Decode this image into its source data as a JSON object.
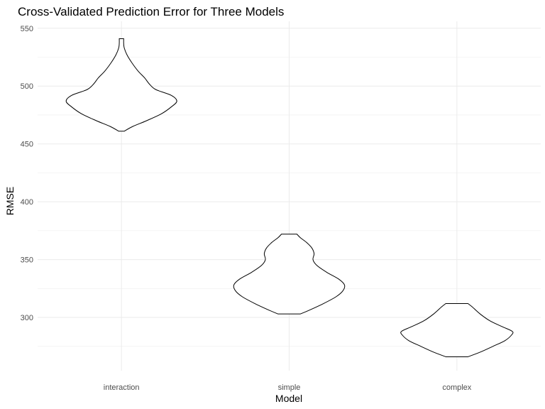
{
  "chart_data": {
    "type": "violin",
    "title": "Cross-Validated Prediction Error for Three Models",
    "xlabel": "Model",
    "ylabel": "RMSE",
    "categories": [
      "interaction",
      "simple",
      "complex"
    ],
    "ylim": [
      254,
      556
    ],
    "yticks": [
      300,
      350,
      400,
      450,
      500,
      550
    ],
    "grid": true,
    "legend": "none",
    "violins": [
      {
        "category": "interaction",
        "profile": [
          [
            461,
            0.05
          ],
          [
            465,
            0.2
          ],
          [
            470,
            0.45
          ],
          [
            476,
            0.72
          ],
          [
            482,
            0.9
          ],
          [
            487,
            1.0
          ],
          [
            492,
            0.9
          ],
          [
            497,
            0.62
          ],
          [
            502,
            0.5
          ],
          [
            507,
            0.42
          ],
          [
            513,
            0.3
          ],
          [
            520,
            0.19
          ],
          [
            527,
            0.1
          ],
          [
            533,
            0.05
          ],
          [
            537,
            0.04
          ],
          [
            541,
            0.04
          ]
        ]
      },
      {
        "category": "simple",
        "profile": [
          [
            303,
            0.2
          ],
          [
            306,
            0.35
          ],
          [
            312,
            0.62
          ],
          [
            318,
            0.85
          ],
          [
            323,
            0.97
          ],
          [
            328,
            1.0
          ],
          [
            333,
            0.9
          ],
          [
            339,
            0.68
          ],
          [
            345,
            0.5
          ],
          [
            350,
            0.43
          ],
          [
            355,
            0.45
          ],
          [
            360,
            0.41
          ],
          [
            365,
            0.31
          ],
          [
            369,
            0.2
          ],
          [
            372,
            0.14
          ]
        ]
      },
      {
        "category": "complex",
        "profile": [
          [
            266,
            0.2
          ],
          [
            270,
            0.42
          ],
          [
            275,
            0.65
          ],
          [
            280,
            0.87
          ],
          [
            285,
            0.99
          ],
          [
            288,
            1.0
          ],
          [
            292,
            0.82
          ],
          [
            297,
            0.6
          ],
          [
            303,
            0.42
          ],
          [
            309,
            0.28
          ],
          [
            312,
            0.2
          ]
        ]
      }
    ]
  }
}
